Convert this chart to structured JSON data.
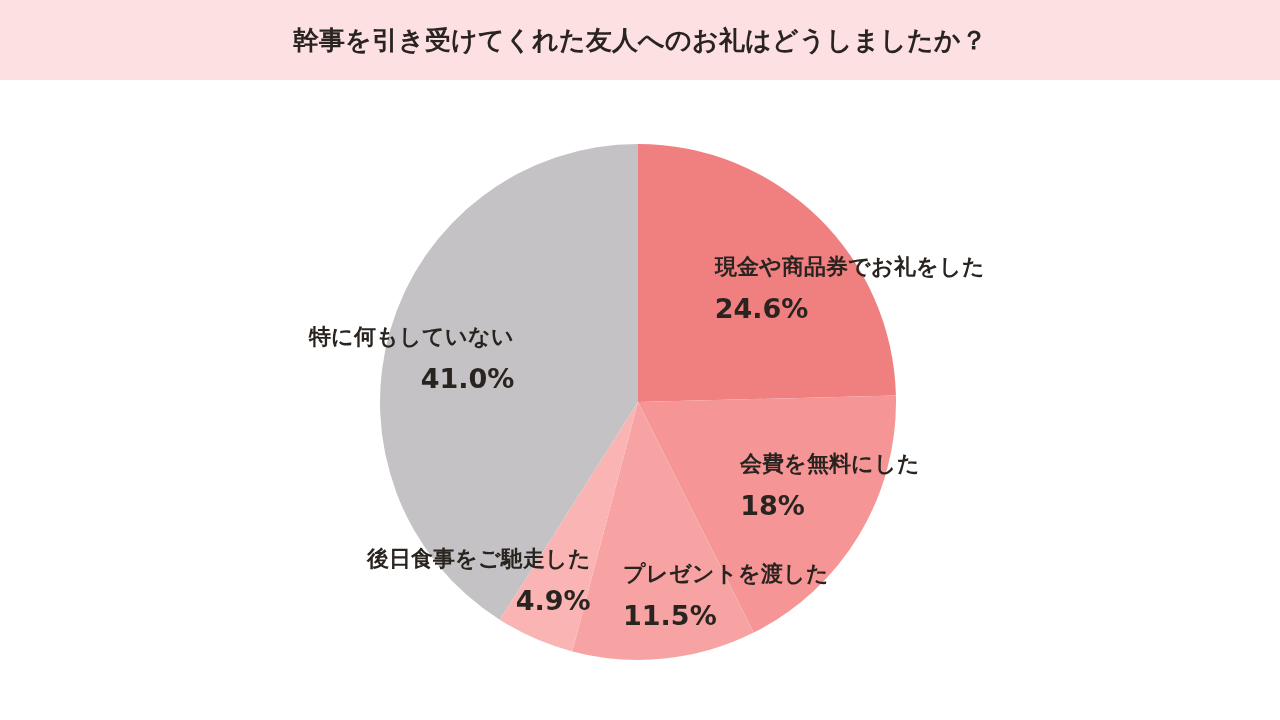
{
  "chart_data": {
    "type": "pie",
    "title": "幹事を引き受けてくれた友人へのお礼はどうしましたか？",
    "categories": [
      "現金や商品券でお礼をした",
      "会費を無料にした",
      "プレゼントを渡した",
      "後日食事をご馳走した",
      "特に何もしていない"
    ],
    "values": [
      24.6,
      18,
      11.5,
      4.9,
      41.0
    ],
    "colors": [
      "#f07f80",
      "#f59595",
      "#f7a3a3",
      "#fab4b4",
      "#c4c2c4"
    ],
    "value_labels": [
      "24.6%",
      "18%",
      "11.5%",
      "4.9%",
      "41.0%"
    ]
  }
}
